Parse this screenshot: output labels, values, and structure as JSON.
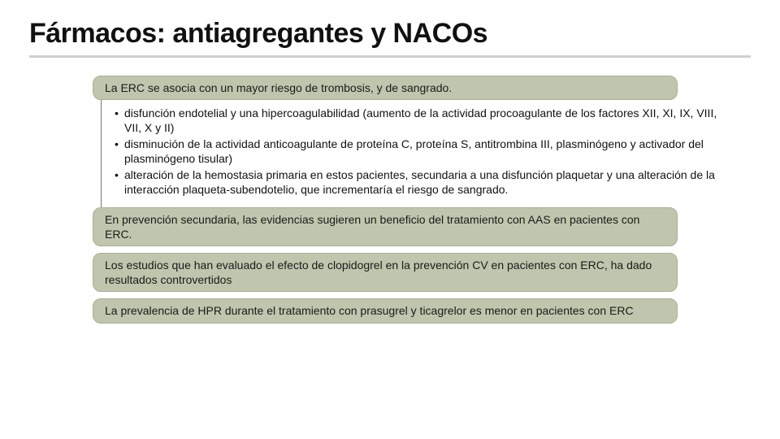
{
  "title": "Fármacos: antiagregantes y NACOs",
  "background_color": "#ffffff",
  "title_color": "#111111",
  "title_fontsize": 34,
  "title_underline_color": "#cfcfcf",
  "pill_style": {
    "background_color": "#bfc6ad",
    "border_color": "#a9b195",
    "border_radius": 10,
    "font_size": 14,
    "text_color": "#1a1a1a"
  },
  "bullet_style": {
    "vertical_rule_color": "#777777",
    "font_size": 14,
    "text_color": "#111111",
    "marker": "•"
  },
  "pills": {
    "p1": "La ERC se asocia con un mayor riesgo de trombosis, y de sangrado.",
    "p2": "En prevención secundaria, las evidencias sugieren un beneficio del tratamiento con AAS en pacientes con ERC.",
    "p3": "Los estudios que han evaluado el efecto de clopidogrel en la prevención CV en pacientes con ERC, ha dado resultados controvertidos",
    "p4": "La prevalencia de HPR durante el tratamiento con prasugrel y ticagrelor es menor en pacientes con ERC"
  },
  "bullets": {
    "b1": "disfunción endotelial y una hipercoagulabilidad (aumento de la actividad procoagulante de los factores XII, XI, IX, VIII, VII, X y II)",
    "b2": "disminución de la actividad anticoagulante de proteína C, proteína S, antitrombina III, plasminógeno y activador del plasminógeno tisular)",
    "b3": "alteración de la hemostasia primaria en estos pacientes, secundaria a una disfunción plaquetar y una alteración de la interacción plaqueta-subendotelio, que incrementaría el riesgo de sangrado."
  }
}
